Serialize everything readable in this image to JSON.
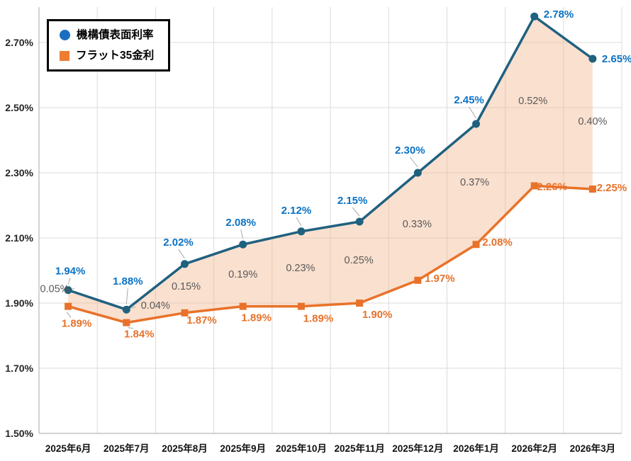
{
  "chart_data": {
    "type": "line",
    "title": "",
    "categories": [
      "2025年6月",
      "2025年7月",
      "2025年8月",
      "2025年9月",
      "2025年10月",
      "2025年11月",
      "2025年12月",
      "2026年1月",
      "2026年2月",
      "2026年3月"
    ],
    "series": [
      {
        "name": "機構債表面利率",
        "values": [
          1.94,
          1.88,
          2.02,
          2.08,
          2.12,
          2.15,
          2.3,
          2.45,
          2.78,
          2.65
        ],
        "labels": [
          "1.94%",
          "1.88%",
          "2.02%",
          "2.08%",
          "2.12%",
          "2.15%",
          "2.30%",
          "2.45%",
          "2.78%",
          "2.65%"
        ],
        "color": "#1F617F",
        "label_color": "#0B72C4",
        "legend_marker_color": "#1C6FC0",
        "marker": "circle"
      },
      {
        "name": "フラット35金利",
        "values": [
          1.89,
          1.84,
          1.87,
          1.89,
          1.89,
          1.9,
          1.97,
          2.08,
          2.26,
          2.25
        ],
        "labels": [
          "1.89%",
          "1.84%",
          "1.87%",
          "1.89%",
          "1.89%",
          "1.90%",
          "1.97%",
          "2.08%",
          "2.26%",
          "2.25%"
        ],
        "color": "#E8722A",
        "label_color": "#E8722A",
        "legend_marker_color": "#ED7D31",
        "marker": "square"
      }
    ],
    "gap_labels": [
      "0.05%",
      "0.04%",
      "0.15%",
      "0.19%",
      "0.23%",
      "0.25%",
      "0.33%",
      "0.37%",
      "0.52%",
      "0.40%"
    ],
    "gap_label_color": "#595959",
    "y_axis": {
      "min": 1.5,
      "max": 2.7,
      "step": 0.2,
      "tick_labels": [
        "1.50%",
        "1.70%",
        "1.90%",
        "2.10%",
        "2.30%",
        "2.50%",
        "2.70%"
      ]
    },
    "grid": true,
    "legend_position": "top-left",
    "fill_between": {
      "color": "rgba(243,180,140,0.42)"
    },
    "grid_color": "#DBDBDB",
    "axis_color": "#B7B7B7",
    "tick_label_color": "#262626"
  }
}
